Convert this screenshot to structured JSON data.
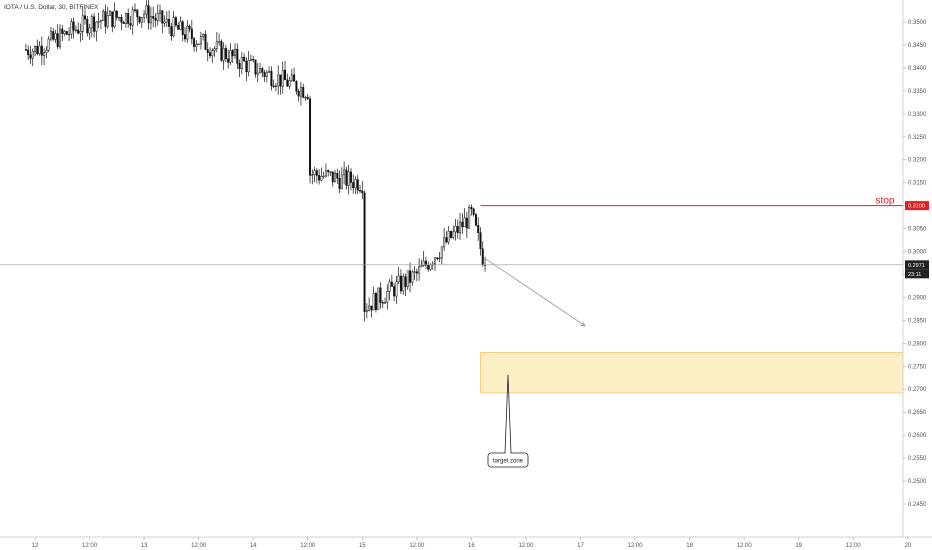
{
  "header": {
    "title": "IOTA / U.S. Dollar, 30, BITFINEX"
  },
  "annotations": {
    "stop_label": "stop",
    "target_label": "target zone",
    "countdown": "23:11"
  },
  "colors": {
    "candle": "#111111",
    "stop_line": "#e02020",
    "target_fill": "#fcefc5",
    "target_border": "#f2c76a",
    "current_price_line": "#9a9a9a",
    "badge_dark": "#222222"
  },
  "chart_data": {
    "type": "candlestick",
    "title": "IOTA / U.S. Dollar, 30, BITFINEX",
    "y_ticks": [
      "0.3500",
      "0.3450",
      "0.3400",
      "0.3350",
      "0.3300",
      "0.3250",
      "0.3200",
      "0.3150",
      "0.3100",
      "0.3050",
      "0.3000",
      "0.2950",
      "0.2900",
      "0.2850",
      "0.2800",
      "0.2750",
      "0.2700",
      "0.2650",
      "0.2600",
      "0.2550",
      "0.2500",
      "0.2450"
    ],
    "x_ticks": [
      "12",
      "12:00",
      "13",
      "12:00",
      "14",
      "12:00",
      "15",
      "12:00",
      "16",
      "12:00",
      "17",
      "12:00",
      "18",
      "12:00",
      "19",
      "12:00",
      "20"
    ],
    "ylim": [
      0.242,
      0.3545
    ],
    "current_price": 0.2971,
    "current_price_label": "0.2971",
    "stop_price": 0.31,
    "stop_price_label": "0.3100",
    "target_zone": [
      0.2692,
      0.278
    ],
    "projection_arrow": {
      "from": {
        "x": "Oct 16 03:00",
        "price": 0.2985
      },
      "to": {
        "x": "Oct 17 01:00",
        "price": 0.2838
      }
    },
    "approx_key_points": [
      {
        "x": "Oct 12 00:00",
        "price": 0.344
      },
      {
        "x": "Oct 12 12:00",
        "price": 0.35
      },
      {
        "x": "Oct 13 00:00",
        "price": 0.352
      },
      {
        "x": "Oct 14 00:00",
        "price": 0.34
      },
      {
        "x": "Oct 14 12:00",
        "price": 0.335
      },
      {
        "x": "Oct 14 12:30",
        "price": 0.317
      },
      {
        "x": "Oct 15 00:00",
        "price": 0.315
      },
      {
        "x": "Oct 15 00:30",
        "price": 0.288
      },
      {
        "x": "Oct 15 12:00",
        "price": 0.295
      },
      {
        "x": "Oct 16 00:00",
        "price": 0.308
      },
      {
        "x": "Oct 16 03:00",
        "price": 0.2971
      }
    ]
  }
}
